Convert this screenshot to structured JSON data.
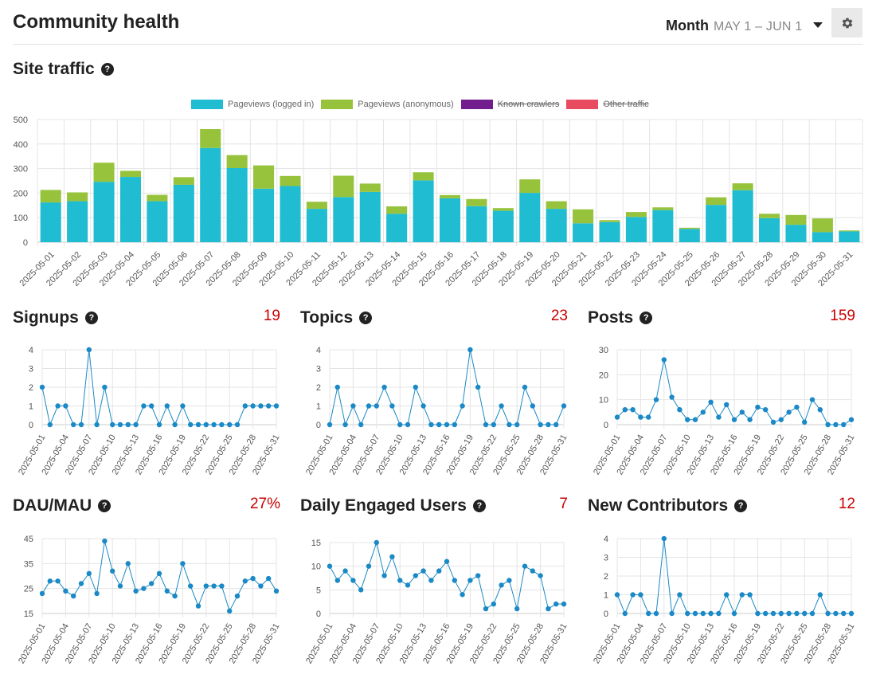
{
  "page": {
    "title": "Community health"
  },
  "period": {
    "label": "Month",
    "range": "MAY 1 – JUN 1"
  },
  "icons": {
    "settings": "gear-icon",
    "dropdown": "caret-down-icon",
    "help": "question-circle-icon"
  },
  "colors": {
    "logged_in": "#1fbcd2",
    "anonymous": "#97c33c",
    "crawlers": "#721d8d",
    "other": "#e84a5f",
    "line": "#1a89c5",
    "value": "#c80001"
  },
  "site_traffic": {
    "title": "Site traffic",
    "help": "?",
    "legend": [
      {
        "name": "Pageviews (logged in)",
        "color": "#1fbcd2",
        "hidden": false
      },
      {
        "name": "Pageviews (anonymous)",
        "color": "#97c33c",
        "hidden": false
      },
      {
        "name": "Known crawlers",
        "color": "#721d8d",
        "hidden": true
      },
      {
        "name": "Other traffic",
        "color": "#e84a5f",
        "hidden": true
      }
    ]
  },
  "reports": [
    {
      "key": "signups",
      "title": "Signups",
      "help": "?",
      "value": "19"
    },
    {
      "key": "topics",
      "title": "Topics",
      "help": "?",
      "value": "23"
    },
    {
      "key": "posts",
      "title": "Posts",
      "help": "?",
      "value": "159"
    },
    {
      "key": "dau_mau",
      "title": "DAU/MAU",
      "help": "?",
      "value": "27%"
    },
    {
      "key": "engaged",
      "title": "Daily Engaged Users",
      "help": "?",
      "value": "7"
    },
    {
      "key": "contributors",
      "title": "New Contributors",
      "help": "?",
      "value": "12"
    }
  ],
  "chart_data": [
    {
      "type": "bar",
      "stacked": true,
      "title": "Site traffic",
      "categories": [
        "2025-05-01",
        "2025-05-02",
        "2025-05-03",
        "2025-05-04",
        "2025-05-05",
        "2025-05-06",
        "2025-05-07",
        "2025-05-08",
        "2025-05-09",
        "2025-05-10",
        "2025-05-11",
        "2025-05-12",
        "2025-05-13",
        "2025-05-14",
        "2025-05-15",
        "2025-05-16",
        "2025-05-17",
        "2025-05-18",
        "2025-05-19",
        "2025-05-20",
        "2025-05-21",
        "2025-05-22",
        "2025-05-23",
        "2025-05-24",
        "2025-05-25",
        "2025-05-26",
        "2025-05-27",
        "2025-05-28",
        "2025-05-29",
        "2025-05-30",
        "2025-05-31"
      ],
      "series": [
        {
          "name": "Pageviews (logged in)",
          "values": [
            162,
            167,
            246,
            266,
            167,
            234,
            384,
            302,
            218,
            229,
            136,
            184,
            205,
            116,
            252,
            179,
            147,
            128,
            201,
            136,
            77,
            82,
            103,
            131,
            54,
            152,
            212,
            98,
            71,
            41,
            44
          ]
        },
        {
          "name": "Pageviews (anonymous)",
          "values": [
            51,
            36,
            78,
            25,
            26,
            31,
            77,
            53,
            95,
            41,
            29,
            87,
            34,
            30,
            33,
            13,
            29,
            11,
            55,
            31,
            57,
            8,
            20,
            11,
            5,
            31,
            28,
            18,
            40,
            56,
            4
          ]
        }
      ],
      "yticks": [
        0,
        100,
        200,
        300,
        400,
        500
      ],
      "ylim": [
        0,
        500
      ],
      "grid": true,
      "legend_position": "top"
    },
    {
      "type": "line",
      "title": "Signups",
      "x_labels": [
        "2025-05-01",
        "2025-05-04",
        "2025-05-07",
        "2025-05-10",
        "2025-05-13",
        "2025-05-16",
        "2025-05-19",
        "2025-05-22",
        "2025-05-25",
        "2025-05-28",
        "2025-05-31"
      ],
      "values": [
        2,
        0,
        1,
        1,
        0,
        0,
        4,
        0,
        2,
        0,
        0,
        0,
        0,
        1,
        1,
        0,
        1,
        0,
        1,
        0,
        0,
        0,
        0,
        0,
        0,
        0,
        1,
        1,
        1,
        1,
        1
      ],
      "yticks": [
        0,
        1,
        2,
        3,
        4
      ],
      "ylim": [
        0,
        4
      ],
      "grid": true
    },
    {
      "type": "line",
      "title": "Topics",
      "x_labels": [
        "2025-05-01",
        "2025-05-04",
        "2025-05-07",
        "2025-05-10",
        "2025-05-13",
        "2025-05-16",
        "2025-05-19",
        "2025-05-22",
        "2025-05-25",
        "2025-05-28",
        "2025-05-31"
      ],
      "values": [
        0,
        2,
        0,
        1,
        0,
        1,
        1,
        2,
        1,
        0,
        0,
        2,
        1,
        0,
        0,
        0,
        0,
        1,
        4,
        2,
        0,
        0,
        1,
        0,
        0,
        2,
        1,
        0,
        0,
        0,
        1
      ],
      "yticks": [
        0,
        1,
        2,
        3,
        4
      ],
      "ylim": [
        0,
        4
      ],
      "grid": true
    },
    {
      "type": "line",
      "title": "Posts",
      "x_labels": [
        "2025-05-01",
        "2025-05-04",
        "2025-05-07",
        "2025-05-10",
        "2025-05-13",
        "2025-05-16",
        "2025-05-19",
        "2025-05-22",
        "2025-05-25",
        "2025-05-28",
        "2025-05-31"
      ],
      "values": [
        3,
        6,
        6,
        3,
        3,
        10,
        26,
        11,
        6,
        2,
        2,
        5,
        9,
        3,
        8,
        2,
        5,
        2,
        7,
        6,
        1,
        2,
        5,
        7,
        1,
        10,
        6,
        0,
        0,
        0,
        2
      ],
      "yticks": [
        0,
        10,
        20,
        30
      ],
      "ylim": [
        0,
        30
      ],
      "grid": true
    },
    {
      "type": "line",
      "title": "DAU/MAU",
      "x_labels": [
        "2025-05-01",
        "2025-05-04",
        "2025-05-07",
        "2025-05-10",
        "2025-05-13",
        "2025-05-16",
        "2025-05-19",
        "2025-05-22",
        "2025-05-25",
        "2025-05-28",
        "2025-05-31"
      ],
      "values": [
        23,
        28,
        28,
        24,
        22,
        27,
        31,
        23,
        44,
        32,
        26,
        35,
        24,
        25,
        27,
        31,
        24,
        22,
        35,
        26,
        18,
        26,
        26,
        26,
        16,
        22,
        28,
        29,
        26,
        29,
        24
      ],
      "yticks": [
        15,
        25,
        35,
        45
      ],
      "ylim": [
        15,
        45
      ],
      "grid": true
    },
    {
      "type": "line",
      "title": "Daily Engaged Users",
      "x_labels": [
        "2025-05-01",
        "2025-05-04",
        "2025-05-07",
        "2025-05-10",
        "2025-05-13",
        "2025-05-16",
        "2025-05-19",
        "2025-05-22",
        "2025-05-25",
        "2025-05-28",
        "2025-05-31"
      ],
      "values": [
        10,
        7,
        9,
        7,
        5,
        10,
        15,
        8,
        12,
        7,
        6,
        8,
        9,
        7,
        9,
        11,
        7,
        4,
        7,
        8,
        1,
        2,
        6,
        7,
        1,
        10,
        9,
        8,
        1,
        2,
        2
      ],
      "yticks": [
        0,
        5,
        10,
        15
      ],
      "ylim": [
        0,
        15
      ],
      "grid": true
    },
    {
      "type": "line",
      "title": "New Contributors",
      "x_labels": [
        "2025-05-01",
        "2025-05-04",
        "2025-05-07",
        "2025-05-10",
        "2025-05-13",
        "2025-05-16",
        "2025-05-19",
        "2025-05-22",
        "2025-05-25",
        "2025-05-28",
        "2025-05-31"
      ],
      "values": [
        1,
        0,
        1,
        1,
        0,
        0,
        4,
        0,
        1,
        0,
        0,
        0,
        0,
        0,
        1,
        0,
        1,
        1,
        0,
        0,
        0,
        0,
        0,
        0,
        0,
        0,
        1,
        0,
        0,
        0,
        0
      ],
      "yticks": [
        0,
        1,
        2,
        3,
        4
      ],
      "ylim": [
        0,
        4
      ],
      "grid": true
    }
  ]
}
